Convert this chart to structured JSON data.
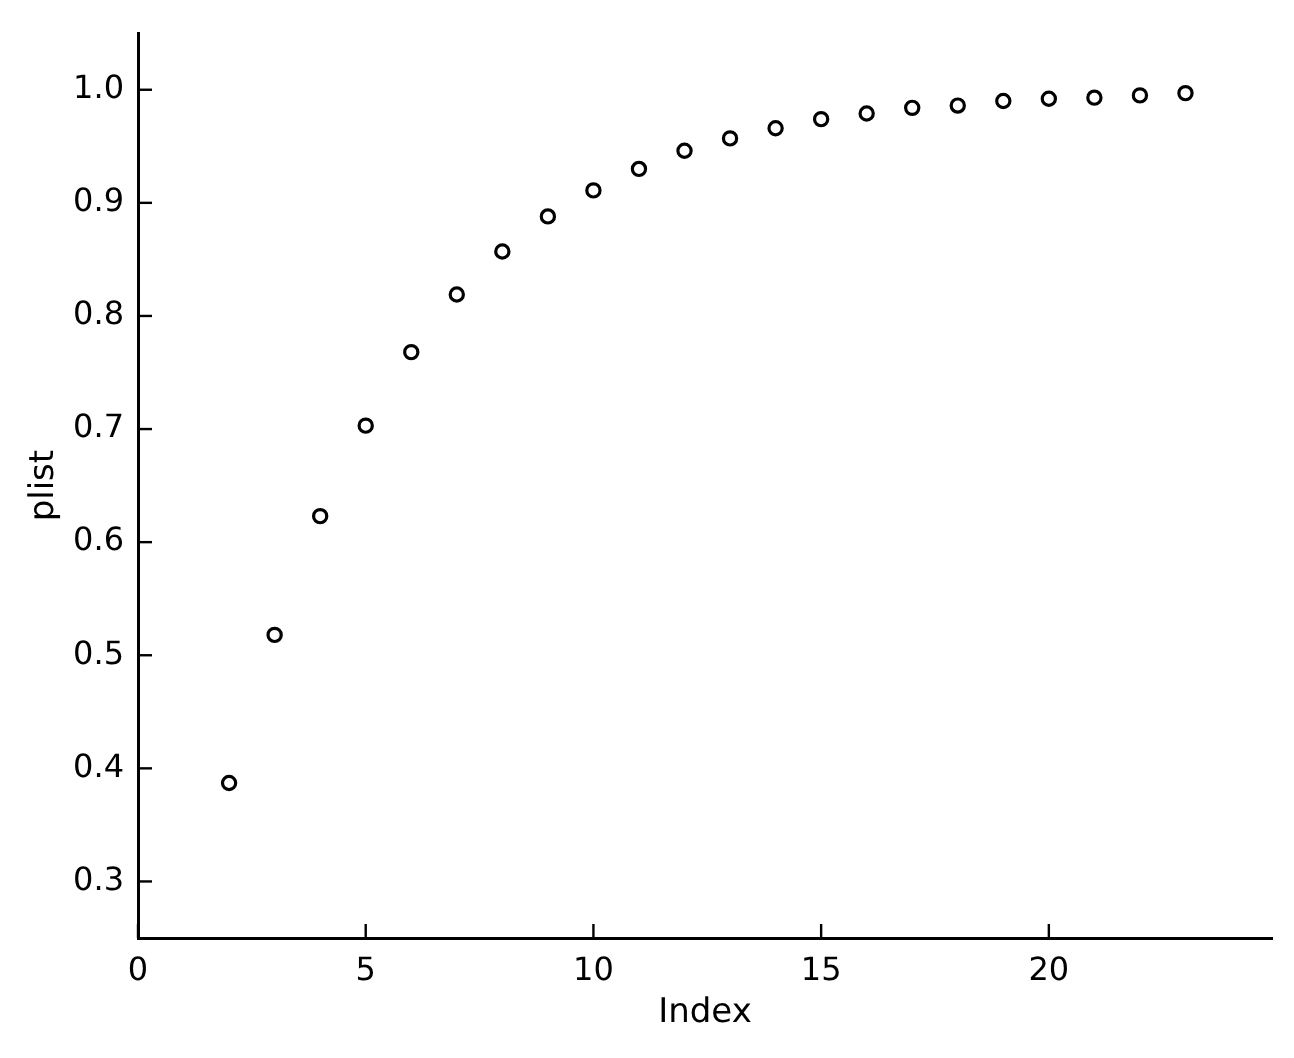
{
  "chart_data": {
    "type": "scatter",
    "xlabel": "Index",
    "ylabel": "plist",
    "x": [
      2,
      3,
      4,
      5,
      6,
      7,
      8,
      9,
      10,
      11,
      12,
      13,
      14,
      15,
      16,
      17,
      18,
      19,
      20,
      21,
      22,
      23
    ],
    "values": [
      0.387,
      0.518,
      0.623,
      0.703,
      0.768,
      0.819,
      0.857,
      0.888,
      0.911,
      0.93,
      0.946,
      0.957,
      0.966,
      0.974,
      0.979,
      0.984,
      0.986,
      0.99,
      0.992,
      0.993,
      0.995,
      0.997
    ],
    "color": "#000000",
    "marker": "circle",
    "xlim": [
      0,
      24.9
    ],
    "ylim": [
      0.25,
      1.05
    ],
    "xticks": [
      0,
      5,
      10,
      15,
      20
    ],
    "yticks": [
      0.3,
      0.4,
      0.5,
      0.6,
      0.7,
      0.8,
      0.9,
      {
        "value": 1.0,
        "label": "1.0"
      }
    ],
    "grid": false,
    "legend": false
  }
}
